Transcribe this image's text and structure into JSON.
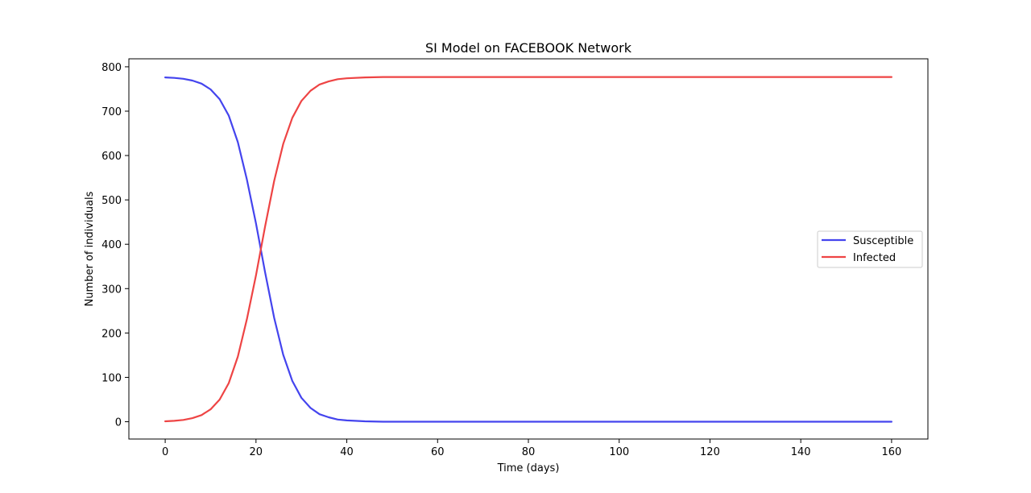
{
  "chart_data": {
    "type": "line",
    "title": "SI Model on FACEBOOK Network",
    "xlabel": "Time (days)",
    "ylabel": "Number of individuals",
    "xlim": [
      -8,
      168
    ],
    "ylim": [
      -39,
      818
    ],
    "xticks": [
      0,
      20,
      40,
      60,
      80,
      100,
      120,
      140,
      160
    ],
    "yticks": [
      0,
      100,
      200,
      300,
      400,
      500,
      600,
      700,
      800
    ],
    "grid": false,
    "legend_position": "center-right",
    "series": [
      {
        "name": "Susceptible",
        "color": "#4444ee",
        "x": [
          0,
          2,
          4,
          6,
          8,
          10,
          12,
          14,
          16,
          18,
          20,
          22,
          24,
          26,
          28,
          30,
          32,
          34,
          36,
          38,
          40,
          44,
          48,
          52,
          60,
          80,
          100,
          120,
          140,
          160
        ],
        "values": [
          776,
          775,
          773,
          769,
          762,
          749,
          727,
          690,
          630,
          546,
          447,
          337,
          234,
          151,
          92,
          54,
          31,
          17,
          10,
          5,
          3,
          1,
          0,
          0,
          0,
          0,
          0,
          0,
          0,
          0
        ]
      },
      {
        "name": "Infected",
        "color": "#ee4444",
        "x": [
          0,
          2,
          4,
          6,
          8,
          10,
          12,
          14,
          16,
          18,
          20,
          22,
          24,
          26,
          28,
          30,
          32,
          34,
          36,
          38,
          40,
          44,
          48,
          52,
          60,
          80,
          100,
          120,
          140,
          160
        ],
        "values": [
          1,
          2,
          4,
          8,
          15,
          28,
          50,
          87,
          147,
          231,
          330,
          440,
          543,
          626,
          685,
          723,
          746,
          760,
          767,
          772,
          774,
          776,
          777,
          777,
          777,
          777,
          777,
          777,
          777,
          777
        ]
      }
    ]
  }
}
